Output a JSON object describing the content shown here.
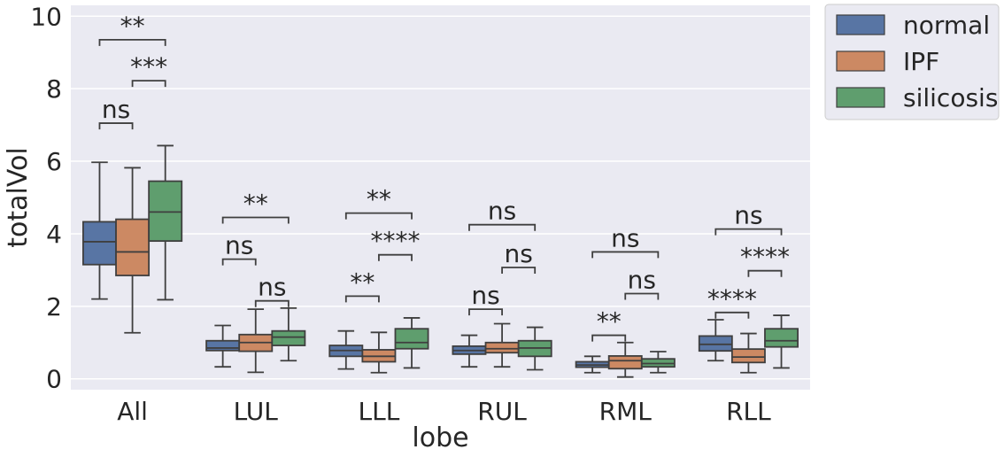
{
  "chart_data": {
    "type": "box",
    "xlabel": "lobe",
    "ylabel": "totalVol",
    "ylim": [
      -0.3,
      10.3
    ],
    "yticks": [
      0,
      2,
      4,
      6,
      8,
      10
    ],
    "grid": true,
    "legend_position": "outside-top-right",
    "categories": [
      "All",
      "LUL",
      "LLL",
      "RUL",
      "RML",
      "RLL"
    ],
    "series": [
      {
        "name": "normal",
        "color": "#5875a4",
        "boxes": [
          {
            "whislo": 2.2,
            "q1": 3.15,
            "med": 3.78,
            "q3": 4.33,
            "whishi": 5.97
          },
          {
            "whislo": 0.33,
            "q1": 0.78,
            "med": 0.85,
            "q3": 1.05,
            "whishi": 1.47
          },
          {
            "whislo": 0.27,
            "q1": 0.62,
            "med": 0.78,
            "q3": 0.92,
            "whishi": 1.32
          },
          {
            "whislo": 0.33,
            "q1": 0.68,
            "med": 0.78,
            "q3": 0.9,
            "whishi": 1.2
          },
          {
            "whislo": 0.17,
            "q1": 0.32,
            "med": 0.38,
            "q3": 0.47,
            "whishi": 0.62
          },
          {
            "whislo": 0.5,
            "q1": 0.77,
            "med": 0.95,
            "q3": 1.18,
            "whishi": 1.63
          }
        ]
      },
      {
        "name": "IPF",
        "color": "#cc8963",
        "boxes": [
          {
            "whislo": 1.27,
            "q1": 2.85,
            "med": 3.5,
            "q3": 4.4,
            "whishi": 5.82
          },
          {
            "whislo": 0.18,
            "q1": 0.76,
            "med": 1.0,
            "q3": 1.22,
            "whishi": 1.92
          },
          {
            "whislo": 0.17,
            "q1": 0.47,
            "med": 0.62,
            "q3": 0.8,
            "whishi": 1.28
          },
          {
            "whislo": 0.33,
            "q1": 0.72,
            "med": 0.83,
            "q3": 1.0,
            "whishi": 1.52
          },
          {
            "whislo": 0.05,
            "q1": 0.28,
            "med": 0.5,
            "q3": 0.63,
            "whishi": 1.0
          },
          {
            "whislo": 0.17,
            "q1": 0.45,
            "med": 0.6,
            "q3": 0.82,
            "whishi": 1.25
          }
        ]
      },
      {
        "name": "silicosis",
        "color": "#5f9e6e",
        "boxes": [
          {
            "whislo": 2.18,
            "q1": 3.8,
            "med": 4.6,
            "q3": 5.45,
            "whishi": 6.43
          },
          {
            "whislo": 0.5,
            "q1": 0.92,
            "med": 1.15,
            "q3": 1.32,
            "whishi": 1.95
          },
          {
            "whislo": 0.3,
            "q1": 0.83,
            "med": 1.0,
            "q3": 1.38,
            "whishi": 1.68
          },
          {
            "whislo": 0.25,
            "q1": 0.62,
            "med": 0.85,
            "q3": 1.05,
            "whishi": 1.42
          },
          {
            "whislo": 0.17,
            "q1": 0.33,
            "med": 0.42,
            "q3": 0.55,
            "whishi": 0.75
          },
          {
            "whislo": 0.3,
            "q1": 0.88,
            "med": 1.05,
            "q3": 1.38,
            "whishi": 1.75
          }
        ]
      }
    ],
    "annotations": [
      {
        "category": "All",
        "from": "normal",
        "to": "IPF",
        "y": 7.05,
        "text": "ns"
      },
      {
        "category": "All",
        "from": "IPF",
        "to": "silicosis",
        "y": 8.22,
        "text": "***"
      },
      {
        "category": "All",
        "from": "normal",
        "to": "silicosis",
        "y": 9.35,
        "text": "**"
      },
      {
        "category": "LUL",
        "from": "normal",
        "to": "IPF",
        "y": 3.3,
        "text": "ns"
      },
      {
        "category": "LUL",
        "from": "IPF",
        "to": "silicosis",
        "y": 2.15,
        "text": "ns"
      },
      {
        "category": "LUL",
        "from": "normal",
        "to": "silicosis",
        "y": 4.45,
        "text": "**"
      },
      {
        "category": "LLL",
        "from": "normal",
        "to": "IPF",
        "y": 2.28,
        "text": "**"
      },
      {
        "category": "LLL",
        "from": "IPF",
        "to": "silicosis",
        "y": 3.42,
        "text": "****"
      },
      {
        "category": "LLL",
        "from": "normal",
        "to": "silicosis",
        "y": 4.57,
        "text": "**"
      },
      {
        "category": "RUL",
        "from": "normal",
        "to": "IPF",
        "y": 1.92,
        "text": "ns"
      },
      {
        "category": "RUL",
        "from": "IPF",
        "to": "silicosis",
        "y": 3.07,
        "text": "ns"
      },
      {
        "category": "RUL",
        "from": "normal",
        "to": "silicosis",
        "y": 4.25,
        "text": "ns"
      },
      {
        "category": "RML",
        "from": "normal",
        "to": "IPF",
        "y": 1.2,
        "text": "**"
      },
      {
        "category": "RML",
        "from": "IPF",
        "to": "silicosis",
        "y": 2.35,
        "text": "ns"
      },
      {
        "category": "RML",
        "from": "normal",
        "to": "silicosis",
        "y": 3.5,
        "text": "ns"
      },
      {
        "category": "RLL",
        "from": "normal",
        "to": "IPF",
        "y": 1.83,
        "text": "****"
      },
      {
        "category": "RLL",
        "from": "IPF",
        "to": "silicosis",
        "y": 2.98,
        "text": "****"
      },
      {
        "category": "RLL",
        "from": "normal",
        "to": "silicosis",
        "y": 4.13,
        "text": "ns"
      }
    ]
  }
}
